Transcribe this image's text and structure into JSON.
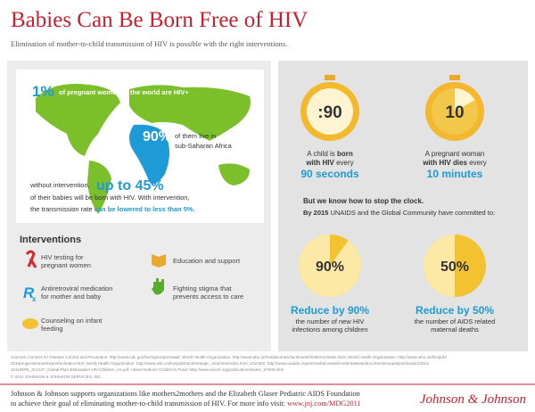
{
  "header": {
    "title": "Babies Can Be Born Free of HIV",
    "subtitle": "Elimination of mother-to-child transmission of HIV is possible with the right interventions."
  },
  "map": {
    "stat1": "1%",
    "stat1_text": "of pregnant women in the world are HIV+",
    "stat2": "90%",
    "stat2_text": [
      "of them live in",
      "sub-Saharan Africa"
    ],
    "stat3_prefix": "without intervention,",
    "stat3": "up to 45%",
    "stat3_text": "of their babies will be born with HIV. With intervention,",
    "stat3_text2": "the transmission rate ",
    "stat3_highlight": "can be lowered to less than 5%."
  },
  "interventions": {
    "title": "Interventions",
    "items": [
      {
        "label": [
          "HIV testing for",
          "pregnant women"
        ]
      },
      {
        "label": [
          "Education and support"
        ]
      },
      {
        "label": [
          "Antiretroviral medication",
          "for mother and baby"
        ]
      },
      {
        "label": [
          "Fighting stigma that",
          "prevents access to care"
        ]
      },
      {
        "label": [
          "Counseling on infant",
          "feeding"
        ]
      }
    ]
  },
  "clocks": [
    {
      "face": ":90",
      "line1": [
        "A child is ",
        "born"
      ],
      "line2": [
        "with HIV",
        " every"
      ],
      "line3": "90 seconds"
    },
    {
      "face": "10",
      "line1": [
        "A pregnant woman"
      ],
      "line2": [
        "with HIV dies",
        " every"
      ],
      "line3": "10 minutes"
    }
  ],
  "commitment": {
    "heading": "But we know how to stop the clock.",
    "intro_bold": "By 2015",
    "intro": " UNAIDS and the Global Community have committed to:"
  },
  "pies": [
    {
      "value": 90,
      "label": "90%",
      "headline": "Reduce by 90%",
      "text": [
        "the number of new HIV",
        "infections among children"
      ]
    },
    {
      "value": 50,
      "label": "50%",
      "headline": "Reduce by 50%",
      "text": [
        "the number of AIDS related",
        "maternal deaths"
      ]
    }
  ],
  "sources": [
    "Sources: Centers for Disease Control and Prevention: http://www.cdc.gov/hiv/topics/perinatal/; World Health Organization: http://www.who.int/mediacentre/factsheets/fs360/en/index.html; World Health Organization: http://www.who.int/hiv/pub/",
    "2010progressreport/report/en/index.html; World Health Organization: http://www.who.int/hiv/pub/mtct/strategic_vision/en/index.html; UNAIDS: http://www.unaids.org/en/media/unaids/contentassets/documents/unaidspublication/2011/",
    "20110609_JC2137_Global-Plan-Elimination-HIV-Children_en.pdf; United Nations Children's Fund: http://www.unicef.org/publications/index_57005.html",
    "© 2011 JOHNSON & JOHNSON SERVICES, INC."
  ],
  "footer": {
    "line1": "Johnson & Johnson supports organizations like mothers2mothers and the Elizabeth Glaser Pediatric AIDS Foundation",
    "line2": "to achieve their goal of eliminating mother-to-child transmission of HIV. For more info visit: ",
    "link": "www.jnj.com/MDG2011",
    "logo": "Johnson & Johnson"
  }
}
